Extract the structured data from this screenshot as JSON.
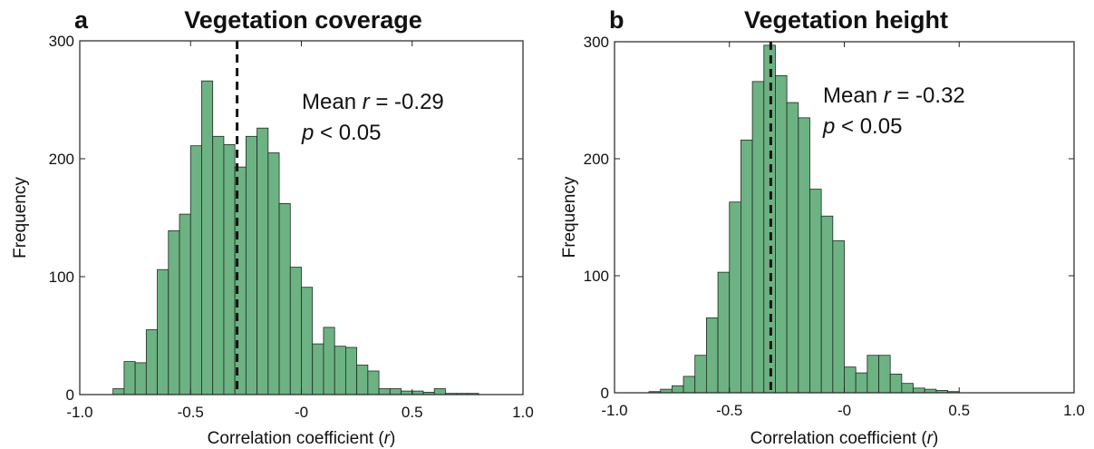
{
  "chart_data": [
    {
      "type": "histogram",
      "panel": "a",
      "title": "Vegetation coverage",
      "xlabel": [
        "Correlation coefficient (",
        "r",
        ")"
      ],
      "ylabel": "Frequency",
      "bins": [
        -1,
        -0.95,
        -0.9,
        -0.85,
        -0.8,
        -0.75,
        -0.7,
        -0.65,
        -0.6,
        -0.55,
        -0.5,
        -0.45,
        -0.4,
        -0.35,
        -0.3,
        -0.25,
        -0.2,
        -0.15,
        -0.1,
        -0.05,
        0,
        0.05,
        0.1,
        0.15,
        0.2,
        0.25,
        0.3,
        0.35,
        0.4,
        0.45,
        0.5,
        0.55,
        0.6,
        0.65,
        0.7,
        0.75,
        0.8,
        0.85,
        0.9,
        0.95,
        1
      ],
      "values": [
        0,
        0,
        0,
        5,
        28,
        27,
        55,
        106,
        139,
        153,
        211,
        266,
        219,
        212,
        193,
        219,
        226,
        205,
        162,
        108,
        91,
        43,
        57,
        41,
        40,
        25,
        20,
        5,
        5,
        3,
        3,
        2,
        5,
        1,
        1,
        1,
        0,
        0,
        0,
        0
      ],
      "color": "#6db283",
      "edgecolor": "#1e2a22",
      "mean": -0.29,
      "annotation": [
        [
          "Mean ",
          "r",
          " = -0.29"
        ],
        [
          "p",
          " < 0.05"
        ]
      ],
      "xlim": [
        -1,
        1
      ],
      "ylim": [
        0,
        300
      ],
      "xticks": [
        {
          "value": -1,
          "label": "-1.0"
        },
        -0.5,
        {
          "value": 0,
          "label": "-0"
        },
        0.5,
        {
          "value": 1,
          "label": "1.0"
        }
      ],
      "yticks": [
        0,
        100,
        200,
        300
      ]
    },
    {
      "type": "histogram",
      "panel": "b",
      "title": "Vegetation height",
      "xlabel": [
        "Correlation coefficient (",
        "r",
        ")"
      ],
      "ylabel": "Frequency",
      "bins": [
        -1,
        -0.95,
        -0.9,
        -0.85,
        -0.8,
        -0.75,
        -0.7,
        -0.65,
        -0.6,
        -0.55,
        -0.5,
        -0.45,
        -0.4,
        -0.35,
        -0.3,
        -0.25,
        -0.2,
        -0.15,
        -0.1,
        -0.05,
        0,
        0.05,
        0.1,
        0.15,
        0.2,
        0.25,
        0.3,
        0.35,
        0.4,
        0.45,
        0.5,
        0.55,
        0.6,
        0.65,
        0.7,
        0.75,
        0.8,
        0.85,
        0.9,
        0.95,
        1
      ],
      "values": [
        0,
        0,
        0,
        1,
        3,
        6,
        14,
        32,
        64,
        103,
        163,
        216,
        266,
        297,
        271,
        248,
        235,
        174,
        151,
        130,
        22,
        17,
        32,
        32,
        16,
        8,
        4,
        3,
        2,
        1,
        0,
        0,
        0,
        0,
        0,
        0,
        0,
        0,
        0,
        0
      ],
      "color": "#6db283",
      "edgecolor": "#1e2a22",
      "mean": -0.32,
      "annotation": [
        [
          "Mean ",
          "r",
          " = -0.32"
        ],
        [
          "p",
          " < 0.05"
        ]
      ],
      "xlim": [
        -1,
        1
      ],
      "ylim": [
        0,
        300
      ],
      "xticks": [
        {
          "value": -1,
          "label": "-1.0"
        },
        -0.5,
        {
          "value": 0,
          "label": "-0"
        },
        0.5,
        {
          "value": 1,
          "label": "1.0"
        }
      ],
      "yticks": [
        0,
        100,
        200,
        300
      ]
    }
  ]
}
